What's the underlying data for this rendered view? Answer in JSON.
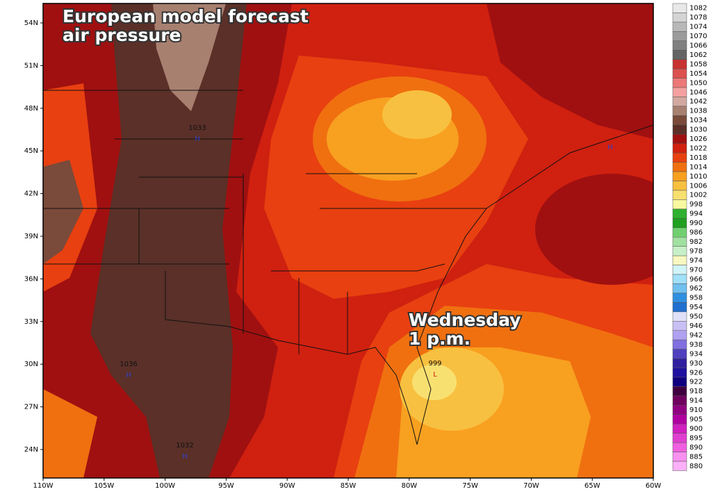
{
  "header": {
    "title_lines": [
      "European model forecast",
      "air pressure"
    ]
  },
  "annotation": {
    "lines": [
      "Wednesday",
      "1 p.m."
    ]
  },
  "axes": {
    "longitude_labels": [
      "110W",
      "105W",
      "100W",
      "95W",
      "90W",
      "85W",
      "80W",
      "75W",
      "70W",
      "65W",
      "60W"
    ],
    "latitude_labels": [
      "54N",
      "51N",
      "48N",
      "45N",
      "42N",
      "39N",
      "36N",
      "33N",
      "30N",
      "27N",
      "24N"
    ]
  },
  "centers": [
    {
      "symbol": "H",
      "pressure": 1033
    },
    {
      "symbol": "H",
      "pressure": 1036
    },
    {
      "symbol": "H",
      "pressure": 1032
    },
    {
      "symbol": "L",
      "pressure": 999
    },
    {
      "symbol": "H"
    }
  ],
  "legend": [
    {
      "label": 1082,
      "color": "#e8e8e8"
    },
    {
      "label": 1078,
      "color": "#d4d4d4"
    },
    {
      "label": 1074,
      "color": "#b8b8b8"
    },
    {
      "label": 1070,
      "color": "#9c9c9c"
    },
    {
      "label": 1066,
      "color": "#808080"
    },
    {
      "label": 1062,
      "color": "#646464"
    },
    {
      "label": 1058,
      "color": "#c83232"
    },
    {
      "label": 1054,
      "color": "#dc5050"
    },
    {
      "label": 1050,
      "color": "#ec7878"
    },
    {
      "label": 1046,
      "color": "#f4a0a0"
    },
    {
      "label": 1042,
      "color": "#d2a8a0"
    },
    {
      "label": 1038,
      "color": "#a88070"
    },
    {
      "label": 1034,
      "color": "#7a4a3a"
    },
    {
      "label": 1030,
      "color": "#5a3028"
    },
    {
      "label": 1026,
      "color": "#a01010"
    },
    {
      "label": 1022,
      "color": "#d02010"
    },
    {
      "label": 1018,
      "color": "#e84010"
    },
    {
      "label": 1014,
      "color": "#f07010"
    },
    {
      "label": 1010,
      "color": "#f8a020"
    },
    {
      "label": 1006,
      "color": "#f8c040"
    },
    {
      "label": 1002,
      "color": "#f8e070"
    },
    {
      "label": 998,
      "color": "#f8f8a0"
    },
    {
      "label": 994,
      "color": "#30b030"
    },
    {
      "label": 990,
      "color": "#20a020"
    },
    {
      "label": 986,
      "color": "#70d070"
    },
    {
      "label": 982,
      "color": "#a0e0a0"
    },
    {
      "label": 978,
      "color": "#c8f0c8"
    },
    {
      "label": 974,
      "color": "#f8f8c0"
    },
    {
      "label": 970,
      "color": "#d0f4f8"
    },
    {
      "label": 966,
      "color": "#a0e0f8"
    },
    {
      "label": 962,
      "color": "#70c0f0"
    },
    {
      "label": 958,
      "color": "#3090e0"
    },
    {
      "label": 954,
      "color": "#2070d0"
    },
    {
      "label": 950,
      "color": "#e0e0f8"
    },
    {
      "label": 946,
      "color": "#c8c0f4"
    },
    {
      "label": 942,
      "color": "#b0a0f0"
    },
    {
      "label": 938,
      "color": "#8070e0"
    },
    {
      "label": 934,
      "color": "#5040c0"
    },
    {
      "label": 930,
      "color": "#3020a0"
    },
    {
      "label": 926,
      "color": "#2010a0"
    },
    {
      "label": 922,
      "color": "#100080"
    },
    {
      "label": 918,
      "color": "#400040"
    },
    {
      "label": 914,
      "color": "#700060"
    },
    {
      "label": 910,
      "color": "#900080"
    },
    {
      "label": 905,
      "color": "#b000a0"
    },
    {
      "label": 900,
      "color": "#d020c0"
    },
    {
      "label": 895,
      "color": "#e040d0"
    },
    {
      "label": 890,
      "color": "#f060e0"
    },
    {
      "label": 885,
      "color": "#f890f0"
    },
    {
      "label": 880,
      "color": "#fbb0f8"
    }
  ]
}
